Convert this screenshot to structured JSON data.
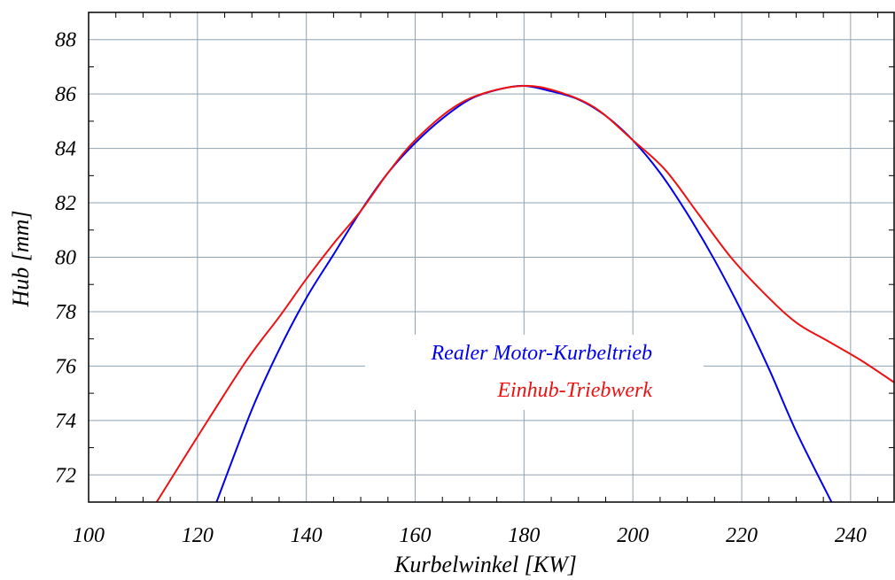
{
  "chart_data": {
    "type": "line",
    "title": "",
    "xlabel": "Kurbelwinkel [KW]",
    "ylabel": "Hub [mm]",
    "xlim": [
      100,
      248
    ],
    "ylim": [
      71,
      89
    ],
    "xticks": [
      100,
      120,
      140,
      160,
      180,
      200,
      220,
      240
    ],
    "yticks": [
      72,
      74,
      76,
      78,
      80,
      82,
      84,
      86,
      88
    ],
    "grid": true,
    "legend_position": "center-right",
    "series": [
      {
        "name": "Realer Motor-Kurbeltrieb",
        "color": "#0000ee",
        "x": [
          123.5,
          130,
          135,
          140,
          145,
          150,
          155,
          160,
          165,
          170,
          175,
          180,
          185,
          190,
          195,
          200,
          205,
          210,
          215,
          220,
          225,
          230,
          236.5
        ],
        "y": [
          71,
          74.4,
          76.6,
          78.5,
          80.1,
          81.7,
          83.1,
          84.2,
          85.1,
          85.8,
          86.15,
          86.3,
          86.1,
          85.8,
          85.2,
          84.3,
          83.1,
          81.6,
          79.9,
          78.0,
          75.9,
          73.6,
          71
        ]
      },
      {
        "name": "Einhub-Triebwerk",
        "color": "#ee1111",
        "x": [
          112.5,
          120,
          129,
          135,
          140,
          145,
          150,
          155,
          160,
          167,
          173,
          180,
          186,
          193,
          200,
          206,
          212,
          218,
          224,
          230,
          236,
          242,
          248
        ],
        "y": [
          71,
          73.4,
          76.2,
          77.8,
          79.2,
          80.5,
          81.7,
          83.1,
          84.3,
          85.5,
          86.05,
          86.3,
          86.1,
          85.5,
          84.3,
          83.2,
          81.6,
          80.0,
          78.7,
          77.6,
          76.9,
          76.2,
          75.4
        ]
      }
    ]
  }
}
